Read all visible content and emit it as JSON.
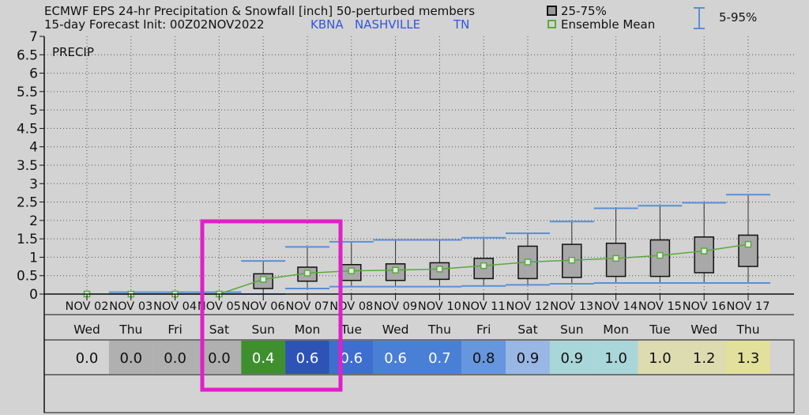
{
  "header": {
    "title_line1": "ECMWF EPS 24-hr Precipitation & Snowfall [inch]  50-perturbed members",
    "title_line2": "15-day Forecast Init: 00Z02NOV2022",
    "station_id": "KBNA",
    "station_name": "NASHVILLE",
    "state": "TN"
  },
  "legend": {
    "box_label": "25-75%",
    "mean_label": "Ensemble Mean",
    "range_label": "5-95%"
  },
  "colors": {
    "background": "#d3d3d3",
    "plot_bg": "#d3d3d3",
    "whisker": "#5b8fd6",
    "box_fill": "#a8a8a8",
    "mean_line": "#5aaa3a",
    "highlight": "#e020c8"
  },
  "chart_data": {
    "type": "box",
    "panel_label": "PRECIP",
    "ylim": [
      0,
      7
    ],
    "yticks": [
      "0",
      "0.5",
      "1",
      "1.5",
      "2",
      "2.5",
      "3",
      "3.5",
      "4",
      "4.5",
      "5",
      "5.5",
      "6",
      "6.5",
      "7"
    ],
    "categories": [
      "NOV 02",
      "NOV 03",
      "NOV 04",
      "NOV 05",
      "NOV 06",
      "NOV 07",
      "NOV 08",
      "NOV 09",
      "NOV 10",
      "NOV 11",
      "NOV 12",
      "NOV 13",
      "NOV 14",
      "NOV 15",
      "NOV 16",
      "NOV 17"
    ],
    "weekdays": [
      "Wed",
      "Thu",
      "Fri",
      "Sat",
      "Sun",
      "Mon",
      "Tue",
      "Wed",
      "Thu",
      "Fri",
      "Sat",
      "Sun",
      "Mon",
      "Tue",
      "Wed",
      "Thu"
    ],
    "mean": [
      0.0,
      0.0,
      0.0,
      0.0,
      0.4,
      0.57,
      0.63,
      0.65,
      0.68,
      0.77,
      0.87,
      0.92,
      0.97,
      1.05,
      1.17,
      1.35
    ],
    "p25": [
      0,
      0,
      0,
      0,
      0.15,
      0.35,
      0.37,
      0.37,
      0.4,
      0.42,
      0.42,
      0.45,
      0.48,
      0.48,
      0.58,
      0.75
    ],
    "p75": [
      0,
      0,
      0,
      0,
      0.55,
      0.73,
      0.8,
      0.82,
      0.85,
      0.97,
      1.3,
      1.35,
      1.38,
      1.47,
      1.55,
      1.6
    ],
    "p5": [
      0,
      0,
      0,
      0,
      0,
      0.15,
      0.2,
      0.2,
      0.2,
      0.22,
      0.25,
      0.28,
      0.3,
      0.3,
      0.3,
      0.3
    ],
    "p95": [
      0,
      0.05,
      0.05,
      0.05,
      0.9,
      1.28,
      1.42,
      1.47,
      1.47,
      1.53,
      1.65,
      1.97,
      2.33,
      2.4,
      2.48,
      2.7
    ],
    "table_values": [
      "0.0",
      "0.0",
      "0.0",
      "0.0",
      "0.4",
      "0.6",
      "0.6",
      "0.6",
      "0.7",
      "0.8",
      "0.9",
      "0.9",
      "1.0",
      "1.0",
      "1.2",
      "1.3"
    ],
    "table_colors": [
      "#d3d3d3",
      "#b0b0b0",
      "#b0b0b0",
      "#b0b0b0",
      "#3f8f2f",
      "#2c53b5",
      "#3d6ed0",
      "#4a7fd6",
      "#4a7fd6",
      "#6596de",
      "#98b7e4",
      "#a9d6d8",
      "#a9d6d8",
      "#dddcb0",
      "#dddcb0",
      "#e2e09a"
    ],
    "table_text_colors": [
      "#111",
      "#111",
      "#111",
      "#111",
      "#ffffff",
      "#ffffff",
      "#ffffff",
      "#ffffff",
      "#ffffff",
      "#111",
      "#111",
      "#111",
      "#111",
      "#111",
      "#111",
      "#111"
    ]
  }
}
